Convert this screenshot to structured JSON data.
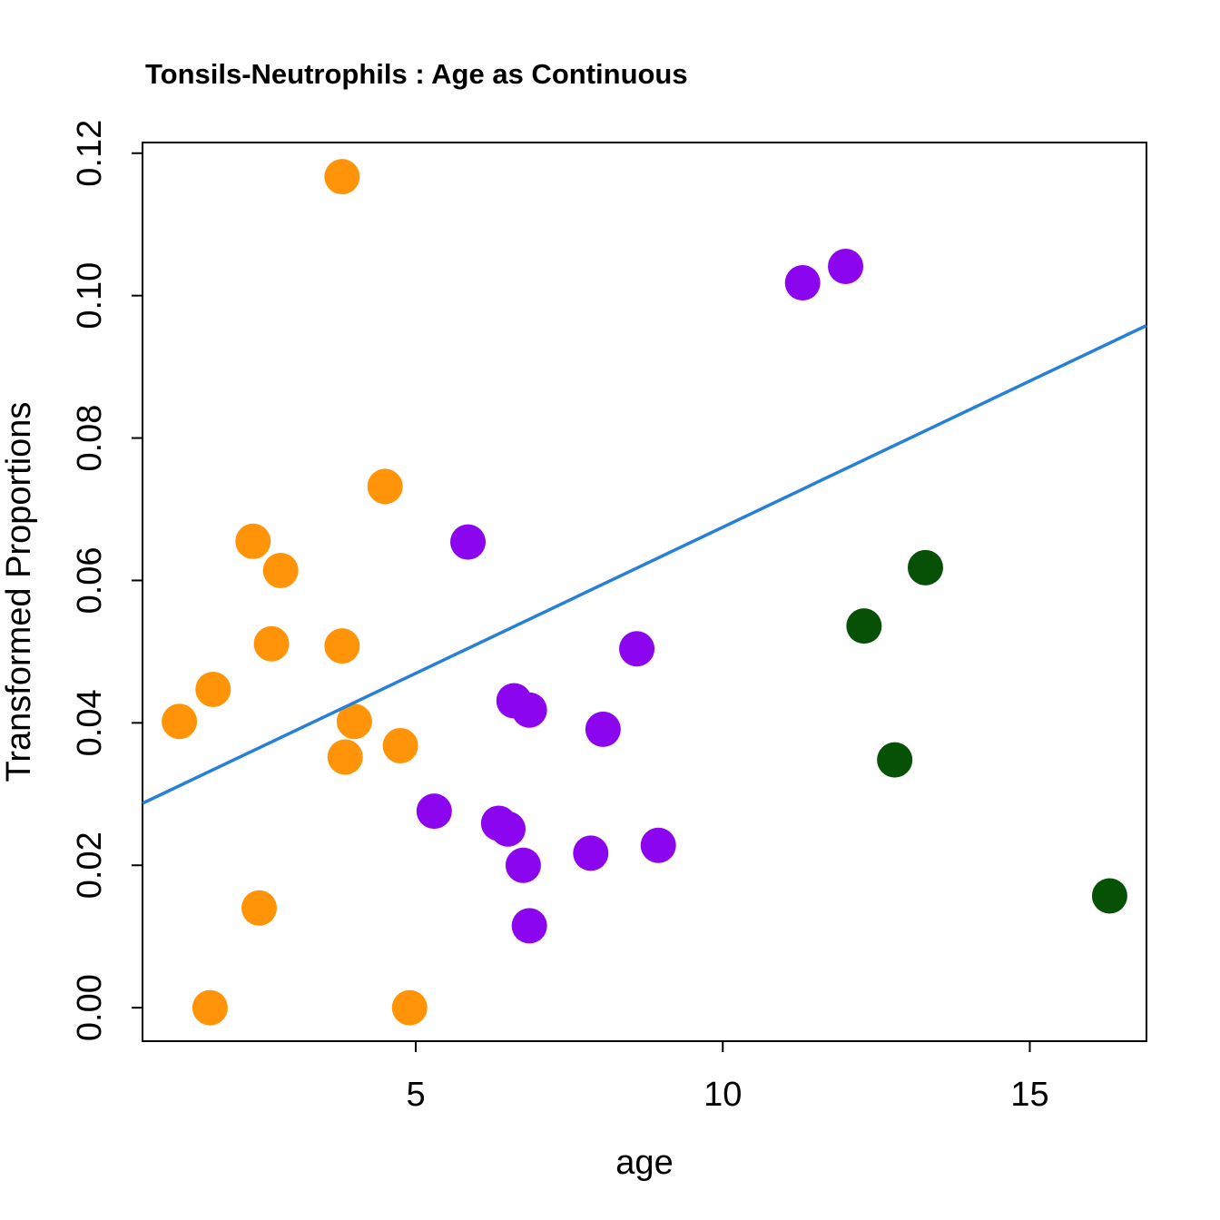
{
  "chart_data": {
    "type": "scatter",
    "title": "Tonsils-Neutrophils : Age as Continuous",
    "xlabel": "age",
    "ylabel": "Transformed Proportions",
    "xlim": [
      0.55,
      16.9
    ],
    "ylim": [
      -0.0047,
      0.1215
    ],
    "x_ticks": [
      5,
      10,
      15
    ],
    "x_tick_labels": [
      "5",
      "10",
      "15"
    ],
    "y_ticks": [
      0.0,
      0.02,
      0.04,
      0.06,
      0.08,
      0.1,
      0.12
    ],
    "y_tick_labels": [
      "0.00",
      "0.02",
      "0.04",
      "0.06",
      "0.08",
      "0.10",
      "0.12"
    ],
    "grid": false,
    "colors": {
      "orange": "#FF9408",
      "purple": "#8B05EF",
      "dark_green": "#065106",
      "trend_line": "#2680D8",
      "axis": "#000000"
    },
    "series": [
      {
        "name": "orange-group",
        "color": "#FF9408",
        "points": [
          {
            "x": 3.8,
            "y": 0.1167
          },
          {
            "x": 4.5,
            "y": 0.0732
          },
          {
            "x": 2.35,
            "y": 0.0655
          },
          {
            "x": 2.8,
            "y": 0.0614
          },
          {
            "x": 2.65,
            "y": 0.0511
          },
          {
            "x": 3.8,
            "y": 0.0508
          },
          {
            "x": 1.7,
            "y": 0.0447
          },
          {
            "x": 1.15,
            "y": 0.0402
          },
          {
            "x": 4.0,
            "y": 0.0402
          },
          {
            "x": 3.85,
            "y": 0.0352
          },
          {
            "x": 4.75,
            "y": 0.0368
          },
          {
            "x": 2.45,
            "y": 0.014
          },
          {
            "x": 1.65,
            "y": 0.0
          },
          {
            "x": 4.9,
            "y": 0.0
          }
        ]
      },
      {
        "name": "purple-group",
        "color": "#8B05EF",
        "points": [
          {
            "x": 11.3,
            "y": 0.1018
          },
          {
            "x": 12.0,
            "y": 0.1041
          },
          {
            "x": 5.85,
            "y": 0.0654
          },
          {
            "x": 8.6,
            "y": 0.0504
          },
          {
            "x": 6.6,
            "y": 0.0431
          },
          {
            "x": 6.85,
            "y": 0.0418
          },
          {
            "x": 8.05,
            "y": 0.0391
          },
          {
            "x": 5.3,
            "y": 0.0276
          },
          {
            "x": 6.35,
            "y": 0.0259
          },
          {
            "x": 6.5,
            "y": 0.0251
          },
          {
            "x": 6.75,
            "y": 0.02
          },
          {
            "x": 7.85,
            "y": 0.0217
          },
          {
            "x": 8.95,
            "y": 0.0228
          },
          {
            "x": 6.85,
            "y": 0.0115
          }
        ]
      },
      {
        "name": "green-group",
        "color": "#065106",
        "points": [
          {
            "x": 13.3,
            "y": 0.0618
          },
          {
            "x": 12.3,
            "y": 0.0536
          },
          {
            "x": 12.8,
            "y": 0.0348
          },
          {
            "x": 16.3,
            "y": 0.0157
          }
        ]
      }
    ],
    "trend_line": {
      "name": "fitted-regression-line",
      "color": "#2680D8",
      "from": {
        "x": 0.55,
        "y": 0.0287
      },
      "to": {
        "x": 16.9,
        "y": 0.0958
      }
    }
  }
}
